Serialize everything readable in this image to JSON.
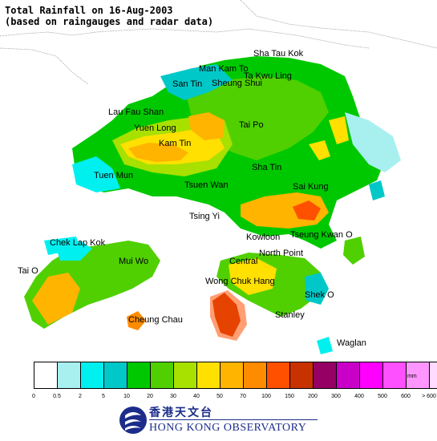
{
  "title": {
    "line1": "Total Rainfall on 16-Aug-2003",
    "line2": "(based on raingauges and radar data)"
  },
  "places": [
    {
      "key": "sha-tau-kok",
      "label": "Sha Tau Kok"
    },
    {
      "key": "man-kam-to",
      "label": "Man Kam To"
    },
    {
      "key": "ta-kwu-ling",
      "label": "Ta Kwu Ling"
    },
    {
      "key": "san-tin",
      "label": "San Tin"
    },
    {
      "key": "sheung-shui",
      "label": "Sheung Shui"
    },
    {
      "key": "lau-fau-shan",
      "label": "Lau Fau Shan"
    },
    {
      "key": "yuen-long",
      "label": "Yuen Long"
    },
    {
      "key": "tai-po",
      "label": "Tai Po"
    },
    {
      "key": "kam-tin",
      "label": "Kam Tin"
    },
    {
      "key": "tuen-mun",
      "label": "Tuen Mun"
    },
    {
      "key": "sha-tin",
      "label": "Sha Tin"
    },
    {
      "key": "tsuen-wan",
      "label": "Tsuen Wan"
    },
    {
      "key": "sai-kung",
      "label": "Sai Kung"
    },
    {
      "key": "tsing-yi",
      "label": "Tsing Yi"
    },
    {
      "key": "chek-lap-kok",
      "label": "Chek Lap Kok"
    },
    {
      "key": "kowloon",
      "label": "Kowloon"
    },
    {
      "key": "tseung-kwan-o",
      "label": "Tseung Kwan O"
    },
    {
      "key": "north-point",
      "label": "North Point"
    },
    {
      "key": "mui-wo",
      "label": "Mui Wo"
    },
    {
      "key": "central",
      "label": "Central"
    },
    {
      "key": "tai-o",
      "label": "Tai O"
    },
    {
      "key": "wong-chuk-hang",
      "label": "Wong Chuk Hang"
    },
    {
      "key": "shek-o",
      "label": "Shek O"
    },
    {
      "key": "stanley",
      "label": "Stanley"
    },
    {
      "key": "cheung-chau",
      "label": "Cheung Chau"
    },
    {
      "key": "waglan",
      "label": "Waglan"
    }
  ],
  "legend": {
    "unit": "mm",
    "colors": [
      "#ffffff",
      "#a8f0f0",
      "#00f0f0",
      "#00c8c8",
      "#00c800",
      "#50d000",
      "#a8e000",
      "#ffe000",
      "#ffb400",
      "#ff8c00",
      "#ff5000",
      "#c83200",
      "#960064",
      "#c800c8",
      "#ff00ff",
      "#ff50ff",
      "#ff96ff",
      "#ffdcff"
    ],
    "ticks": [
      "0",
      "0.5",
      "2",
      "5",
      "10",
      "20",
      "30",
      "40",
      "50",
      "70",
      "100",
      "150",
      "200",
      "300",
      "400",
      "500",
      "600",
      "> 600"
    ]
  },
  "logo": {
    "chinese": "香港天文台",
    "english": "HONG KONG OBSERVATORY"
  }
}
